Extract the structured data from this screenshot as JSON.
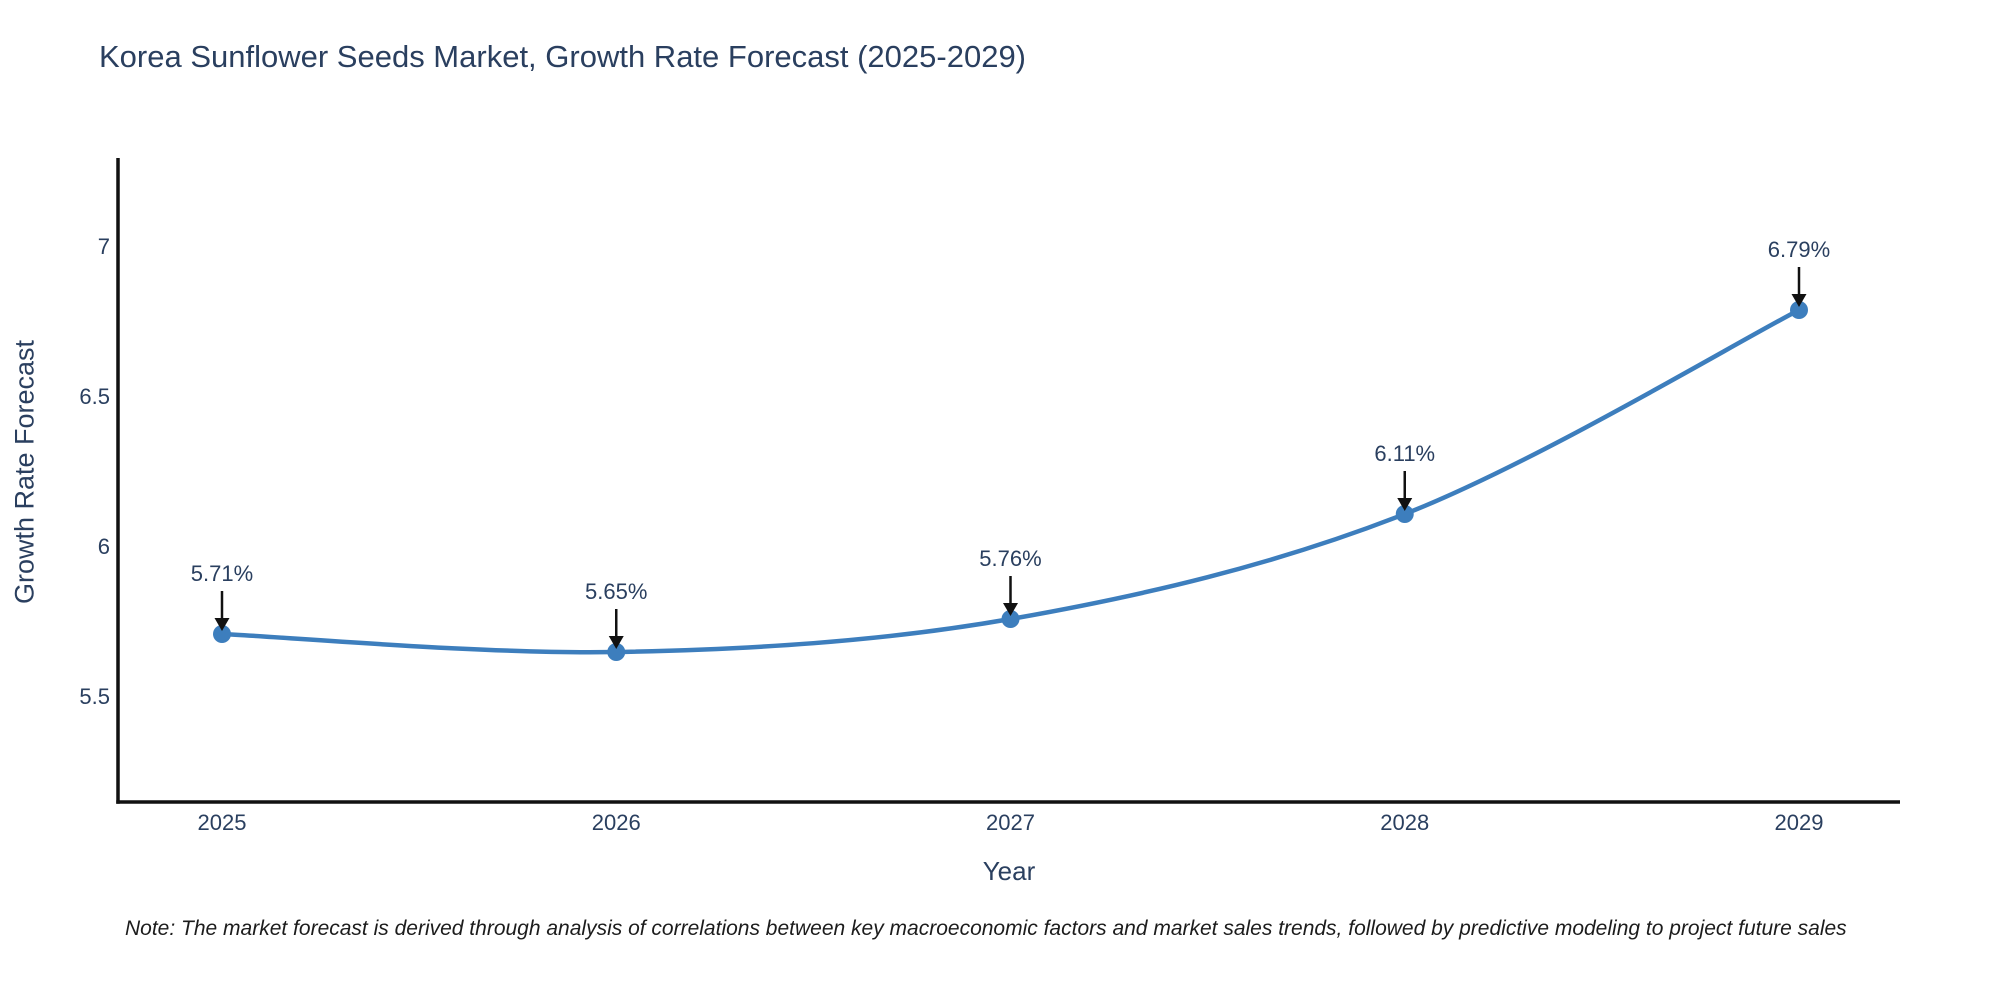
{
  "title": "Korea Sunflower Seeds Market, Growth Rate Forecast (2025-2029)",
  "note": "Note: The market forecast is derived through analysis of correlations between key macroeconomic factors and market sales trends, followed by predictive modeling to project future sales",
  "chart_data": {
    "type": "line",
    "line_shape": "spline",
    "title": "Korea Sunflower Seeds Market, Growth Rate Forecast (2025-2029)",
    "xlabel": "Year",
    "ylabel": "Growth Rate Forecast",
    "categories": [
      "2025",
      "2026",
      "2027",
      "2028",
      "2029"
    ],
    "values": [
      5.71,
      5.65,
      5.76,
      6.11,
      6.79
    ],
    "point_labels": [
      "5.71%",
      "5.65%",
      "5.76%",
      "6.11%",
      "6.79%"
    ],
    "yticks": [
      5.5,
      6,
      6.5,
      7
    ],
    "ylim": [
      5.15,
      7.3
    ],
    "grid": false,
    "legend_position": "none",
    "line_color": "#3d7ebd",
    "marker_color": "#3d7ebd",
    "axis_color": "#111111",
    "text_color": "#2a3f5f",
    "annotations_have_arrows": true
  }
}
